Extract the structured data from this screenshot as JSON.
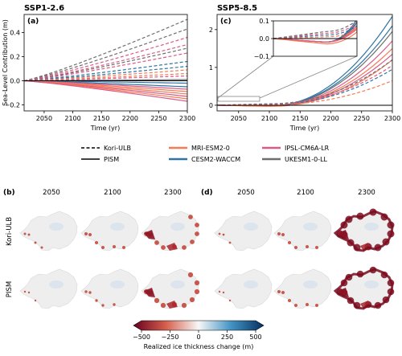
{
  "chart_data": [
    {
      "type": "line",
      "panel": "a",
      "title": "SSP1-2.6",
      "xlabel": "Time (yr)",
      "ylabel": "Sea-Level Contribution (m)",
      "xlim": [
        2015,
        2300
      ],
      "ylim": [
        -0.25,
        0.55
      ],
      "xticks": [
        2050,
        2100,
        2150,
        2200,
        2250,
        2300
      ],
      "yticks": [
        -0.2,
        0.0,
        0.2,
        0.4
      ],
      "ytick_labels": [
        "−0.2",
        "0.0",
        "0.2",
        "0.4"
      ],
      "zero_line": true,
      "grid": false,
      "series": [
        {
          "model": "UKESM1-0-LL",
          "ice_model": "Kori-ULB",
          "x": [
            2015,
            2300
          ],
          "values": [
            0,
            0.51
          ]
        },
        {
          "model": "UKESM1-0-LL",
          "ice_model": "Kori-ULB",
          "x": [
            2015,
            2300
          ],
          "values": [
            0,
            0.43
          ]
        },
        {
          "model": "IPSL-CM6A-LR",
          "ice_model": "Kori-ULB",
          "x": [
            2015,
            2300
          ],
          "values": [
            0,
            0.36
          ]
        },
        {
          "model": "IPSL-CM6A-LR",
          "ice_model": "Kori-ULB",
          "x": [
            2015,
            2300
          ],
          "values": [
            0,
            0.3
          ]
        },
        {
          "model": "UKESM1-0-LL",
          "ice_model": "Kori-ULB",
          "x": [
            2015,
            2300
          ],
          "values": [
            0,
            0.27
          ]
        },
        {
          "model": "IPSL-CM6A-LR",
          "ice_model": "Kori-ULB",
          "x": [
            2015,
            2300
          ],
          "values": [
            0,
            0.23
          ]
        },
        {
          "model": "CESM2-WACCM",
          "ice_model": "Kori-ULB",
          "x": [
            2015,
            2300
          ],
          "values": [
            0,
            0.16
          ]
        },
        {
          "model": "CESM2-WACCM",
          "ice_model": "Kori-ULB",
          "x": [
            2015,
            2300
          ],
          "values": [
            0,
            0.12
          ]
        },
        {
          "model": "MRI-ESM2-0",
          "ice_model": "Kori-ULB",
          "x": [
            2015,
            2300
          ],
          "values": [
            0,
            0.09
          ]
        },
        {
          "model": "MRI-ESM2-0",
          "ice_model": "Kori-ULB",
          "x": [
            2015,
            2300
          ],
          "values": [
            0,
            0.06
          ]
        },
        {
          "model": "IPSL-CM6A-LR",
          "ice_model": "Kori-ULB",
          "x": [
            2015,
            2300
          ],
          "values": [
            0,
            0.04
          ]
        },
        {
          "model": "UKESM1-0-LL",
          "ice_model": "PISM",
          "x": [
            2015,
            2300
          ],
          "values": [
            0,
            0.01
          ]
        },
        {
          "model": "CESM2-WACCM",
          "ice_model": "PISM",
          "x": [
            2015,
            2300
          ],
          "values": [
            0,
            -0.02
          ]
        },
        {
          "model": "CESM2-WACCM",
          "ice_model": "PISM",
          "x": [
            2015,
            2300
          ],
          "values": [
            0,
            -0.05
          ]
        },
        {
          "model": "IPSL-CM6A-LR",
          "ice_model": "PISM",
          "x": [
            2015,
            2300
          ],
          "values": [
            0,
            -0.07
          ]
        },
        {
          "model": "MRI-ESM2-0",
          "ice_model": "PISM",
          "x": [
            2015,
            2300
          ],
          "values": [
            0,
            -0.09
          ]
        },
        {
          "model": "MRI-ESM2-0",
          "ice_model": "PISM",
          "x": [
            2015,
            2300
          ],
          "values": [
            0,
            -0.11
          ]
        },
        {
          "model": "IPSL-CM6A-LR",
          "ice_model": "PISM",
          "x": [
            2015,
            2300
          ],
          "values": [
            0,
            -0.13
          ]
        },
        {
          "model": "MRI-ESM2-0",
          "ice_model": "PISM",
          "x": [
            2015,
            2300
          ],
          "values": [
            0,
            -0.15
          ]
        },
        {
          "model": "IPSL-CM6A-LR",
          "ice_model": "PISM",
          "x": [
            2015,
            2300
          ],
          "values": [
            0,
            -0.17
          ]
        }
      ]
    },
    {
      "type": "line",
      "panel": "c",
      "title": "SSP5-8.5",
      "xlabel": "Time (yr)",
      "ylabel": "",
      "xlim": [
        2015,
        2300
      ],
      "ylim": [
        -0.15,
        2.4
      ],
      "xticks": [
        2050,
        2100,
        2150,
        2200,
        2250,
        2300
      ],
      "yticks": [
        0,
        1,
        2
      ],
      "ytick_labels": [
        "0",
        "1",
        "2"
      ],
      "zero_line": true,
      "grid": false,
      "inset": {
        "xlim": [
          2015,
          2150
        ],
        "ylim": [
          -0.1,
          0.1
        ],
        "yticks": [
          -0.1,
          0.0,
          0.1
        ],
        "ytick_labels": [
          "−0.1",
          "0.0",
          "0.1"
        ],
        "zero_line": true
      },
      "series": [
        {
          "model": "CESM2-WACCM",
          "ice_model": "PISM",
          "x": [
            2015,
            2100,
            2300
          ],
          "values": [
            0,
            -0.02,
            2.35
          ]
        },
        {
          "model": "CESM2-WACCM",
          "ice_model": "PISM",
          "x": [
            2015,
            2100,
            2300
          ],
          "values": [
            0,
            -0.02,
            2.1
          ]
        },
        {
          "model": "UKESM1-0-LL",
          "ice_model": "PISM",
          "x": [
            2015,
            2100,
            2300
          ],
          "values": [
            0,
            -0.02,
            1.95
          ]
        },
        {
          "model": "IPSL-CM6A-LR",
          "ice_model": "PISM",
          "x": [
            2015,
            2100,
            2300
          ],
          "values": [
            0,
            -0.02,
            1.7
          ]
        },
        {
          "model": "MRI-ESM2-0",
          "ice_model": "PISM",
          "x": [
            2015,
            2100,
            2300
          ],
          "values": [
            0,
            -0.02,
            1.5
          ]
        },
        {
          "model": "IPSL-CM6A-LR",
          "ice_model": "PISM",
          "x": [
            2015,
            2100,
            2300
          ],
          "values": [
            0,
            -0.02,
            1.35
          ]
        },
        {
          "model": "MRI-ESM2-0",
          "ice_model": "PISM",
          "x": [
            2015,
            2100,
            2300
          ],
          "values": [
            0,
            -0.03,
            1.2
          ]
        },
        {
          "model": "UKESM1-0-LL",
          "ice_model": "Kori-ULB",
          "x": [
            2015,
            2100,
            2300
          ],
          "values": [
            0,
            0.04,
            1.2
          ]
        },
        {
          "model": "IPSL-CM6A-LR",
          "ice_model": "Kori-ULB",
          "x": [
            2015,
            2100,
            2300
          ],
          "values": [
            0,
            0.03,
            1.05
          ]
        },
        {
          "model": "CESM2-WACCM",
          "ice_model": "Kori-ULB",
          "x": [
            2015,
            2100,
            2300
          ],
          "values": [
            0,
            0.02,
            0.95
          ]
        },
        {
          "model": "MRI-ESM2-0",
          "ice_model": "Kori-ULB",
          "x": [
            2015,
            2100,
            2300
          ],
          "values": [
            0,
            0.01,
            0.65
          ]
        }
      ]
    }
  ],
  "legend": {
    "ice_models": [
      {
        "label": "Kori-ULB",
        "style": "dashed"
      },
      {
        "label": "PISM",
        "style": "solid"
      }
    ],
    "forcings": [
      {
        "label": "MRI-ESM2-0",
        "color": "#f47b56"
      },
      {
        "label": "CESM2-WACCM",
        "color": "#2f74a5"
      },
      {
        "label": "IPSL-CM6A-LR",
        "color": "#dc5a87"
      },
      {
        "label": "UKESM1-0-LL",
        "color": "#6e6e6e"
      }
    ]
  },
  "maps": {
    "panels": [
      {
        "tag": "(b)",
        "years": [
          "2050",
          "2100",
          "2300"
        ],
        "rows": [
          "Kori-ULB",
          "PISM"
        ]
      },
      {
        "tag": "(d)",
        "years": [
          "2050",
          "2100",
          "2300"
        ]
      }
    ],
    "damage_level": {
      "b": {
        "Kori-ULB": [
          0.15,
          0.3,
          0.55
        ],
        "PISM": [
          0.05,
          0.2,
          0.6
        ]
      },
      "d": {
        "Kori-ULB": [
          0.1,
          0.3,
          1.0
        ],
        "PISM": [
          0.05,
          0.3,
          0.95
        ]
      }
    }
  },
  "colorbar": {
    "label": "Realized ice thickness change (m)",
    "min": -500,
    "max": 500,
    "ticks": [
      "−500",
      "−250",
      "0",
      "250",
      "500"
    ],
    "colors": [
      "#67001f",
      "#d6604d",
      "#f7f7f7",
      "#4393c3",
      "#053061"
    ]
  }
}
